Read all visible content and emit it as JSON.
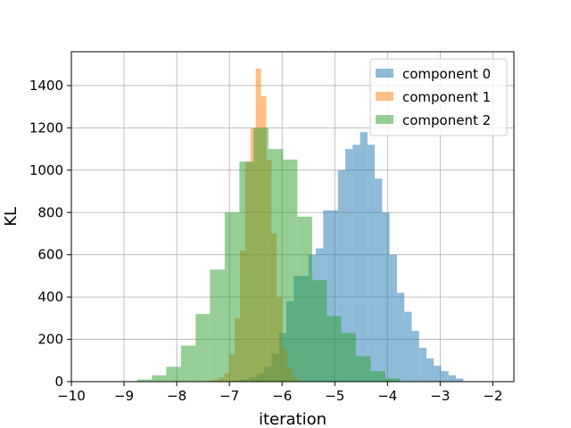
{
  "chart_data": {
    "type": "histogram",
    "title": "",
    "xlabel": "iteration",
    "ylabel": "KL",
    "xlim": [
      -10,
      -1.6
    ],
    "ylim": [
      0,
      1560
    ],
    "xticks": [
      -10,
      -9,
      -8,
      -7,
      -6,
      -5,
      -4,
      -3,
      -2
    ],
    "xtick_labels": [
      "−10",
      "−9",
      "−8",
      "−7",
      "−6",
      "−5",
      "−4",
      "−3",
      "−2"
    ],
    "yticks": [
      0,
      200,
      400,
      600,
      800,
      1000,
      1200,
      1400
    ],
    "ytick_labels": [
      "0",
      "200",
      "400",
      "600",
      "800",
      "1000",
      "1200",
      "1400"
    ],
    "grid": true,
    "legend_position": "top-right",
    "series": [
      {
        "name": "component 0",
        "color": "#1f77b4",
        "alpha": 0.5,
        "bins": [
          {
            "x0": -6.9,
            "x1": -6.76,
            "value": 5
          },
          {
            "x0": -6.76,
            "x1": -6.62,
            "value": 10
          },
          {
            "x0": -6.62,
            "x1": -6.48,
            "value": 20
          },
          {
            "x0": -6.48,
            "x1": -6.34,
            "value": 40
          },
          {
            "x0": -6.34,
            "x1": -6.2,
            "value": 70
          },
          {
            "x0": -6.2,
            "x1": -6.06,
            "value": 130
          },
          {
            "x0": -6.06,
            "x1": -5.92,
            "value": 230
          },
          {
            "x0": -5.92,
            "x1": -5.78,
            "value": 380
          },
          {
            "x0": -5.78,
            "x1": -5.64,
            "value": 500
          },
          {
            "x0": -5.64,
            "x1": -5.5,
            "value": 500
          },
          {
            "x0": -5.5,
            "x1": -5.36,
            "value": 600
          },
          {
            "x0": -5.36,
            "x1": -5.22,
            "value": 630
          },
          {
            "x0": -5.22,
            "x1": -5.08,
            "value": 810
          },
          {
            "x0": -5.08,
            "x1": -4.94,
            "value": 810
          },
          {
            "x0": -4.94,
            "x1": -4.8,
            "value": 1000
          },
          {
            "x0": -4.8,
            "x1": -4.66,
            "value": 1100
          },
          {
            "x0": -4.66,
            "x1": -4.52,
            "value": 1120
          },
          {
            "x0": -4.52,
            "x1": -4.38,
            "value": 1180
          },
          {
            "x0": -4.38,
            "x1": -4.24,
            "value": 1120
          },
          {
            "x0": -4.24,
            "x1": -4.1,
            "value": 960
          },
          {
            "x0": -4.1,
            "x1": -3.96,
            "value": 800
          },
          {
            "x0": -3.96,
            "x1": -3.82,
            "value": 600
          },
          {
            "x0": -3.82,
            "x1": -3.68,
            "value": 420
          },
          {
            "x0": -3.68,
            "x1": -3.54,
            "value": 330
          },
          {
            "x0": -3.54,
            "x1": -3.4,
            "value": 240
          },
          {
            "x0": -3.4,
            "x1": -3.26,
            "value": 160
          },
          {
            "x0": -3.26,
            "x1": -3.12,
            "value": 110
          },
          {
            "x0": -3.12,
            "x1": -2.98,
            "value": 75
          },
          {
            "x0": -2.98,
            "x1": -2.84,
            "value": 50
          },
          {
            "x0": -2.84,
            "x1": -2.7,
            "value": 30
          },
          {
            "x0": -2.7,
            "x1": -2.56,
            "value": 15
          }
        ]
      },
      {
        "name": "component 1",
        "color": "#ff7f0e",
        "alpha": 0.5,
        "bins": [
          {
            "x0": -7.4,
            "x1": -7.3,
            "value": 5
          },
          {
            "x0": -7.3,
            "x1": -7.2,
            "value": 10
          },
          {
            "x0": -7.2,
            "x1": -7.1,
            "value": 20
          },
          {
            "x0": -7.1,
            "x1": -7.0,
            "value": 40
          },
          {
            "x0": -7.0,
            "x1": -6.9,
            "value": 130
          },
          {
            "x0": -6.9,
            "x1": -6.8,
            "value": 300
          },
          {
            "x0": -6.8,
            "x1": -6.7,
            "value": 620
          },
          {
            "x0": -6.7,
            "x1": -6.6,
            "value": 1040
          },
          {
            "x0": -6.6,
            "x1": -6.5,
            "value": 1200
          },
          {
            "x0": -6.5,
            "x1": -6.4,
            "value": 1480
          },
          {
            "x0": -6.4,
            "x1": -6.3,
            "value": 1350
          },
          {
            "x0": -6.3,
            "x1": -6.2,
            "value": 1050
          },
          {
            "x0": -6.2,
            "x1": -6.1,
            "value": 700
          },
          {
            "x0": -6.1,
            "x1": -6.0,
            "value": 400
          },
          {
            "x0": -6.0,
            "x1": -5.9,
            "value": 150
          },
          {
            "x0": -5.9,
            "x1": -5.8,
            "value": 60
          },
          {
            "x0": -5.8,
            "x1": -5.7,
            "value": 20
          }
        ]
      },
      {
        "name": "component 2",
        "color": "#2ca02c",
        "alpha": 0.5,
        "bins": [
          {
            "x0": -8.75,
            "x1": -8.47,
            "value": 10
          },
          {
            "x0": -8.47,
            "x1": -8.2,
            "value": 30
          },
          {
            "x0": -8.2,
            "x1": -7.92,
            "value": 70
          },
          {
            "x0": -7.92,
            "x1": -7.64,
            "value": 170
          },
          {
            "x0": -7.64,
            "x1": -7.37,
            "value": 320
          },
          {
            "x0": -7.37,
            "x1": -7.09,
            "value": 530
          },
          {
            "x0": -7.09,
            "x1": -6.81,
            "value": 800
          },
          {
            "x0": -6.81,
            "x1": -6.54,
            "value": 1040
          },
          {
            "x0": -6.54,
            "x1": -6.26,
            "value": 1200
          },
          {
            "x0": -6.26,
            "x1": -5.98,
            "value": 1100
          },
          {
            "x0": -5.98,
            "x1": -5.71,
            "value": 1050
          },
          {
            "x0": -5.71,
            "x1": -5.43,
            "value": 780
          },
          {
            "x0": -5.43,
            "x1": -5.15,
            "value": 480
          },
          {
            "x0": -5.15,
            "x1": -4.88,
            "value": 310
          },
          {
            "x0": -4.88,
            "x1": -4.6,
            "value": 230
          },
          {
            "x0": -4.6,
            "x1": -4.32,
            "value": 120
          },
          {
            "x0": -4.32,
            "x1": -4.04,
            "value": 50
          },
          {
            "x0": -4.04,
            "x1": -3.76,
            "value": 15
          }
        ]
      }
    ]
  }
}
